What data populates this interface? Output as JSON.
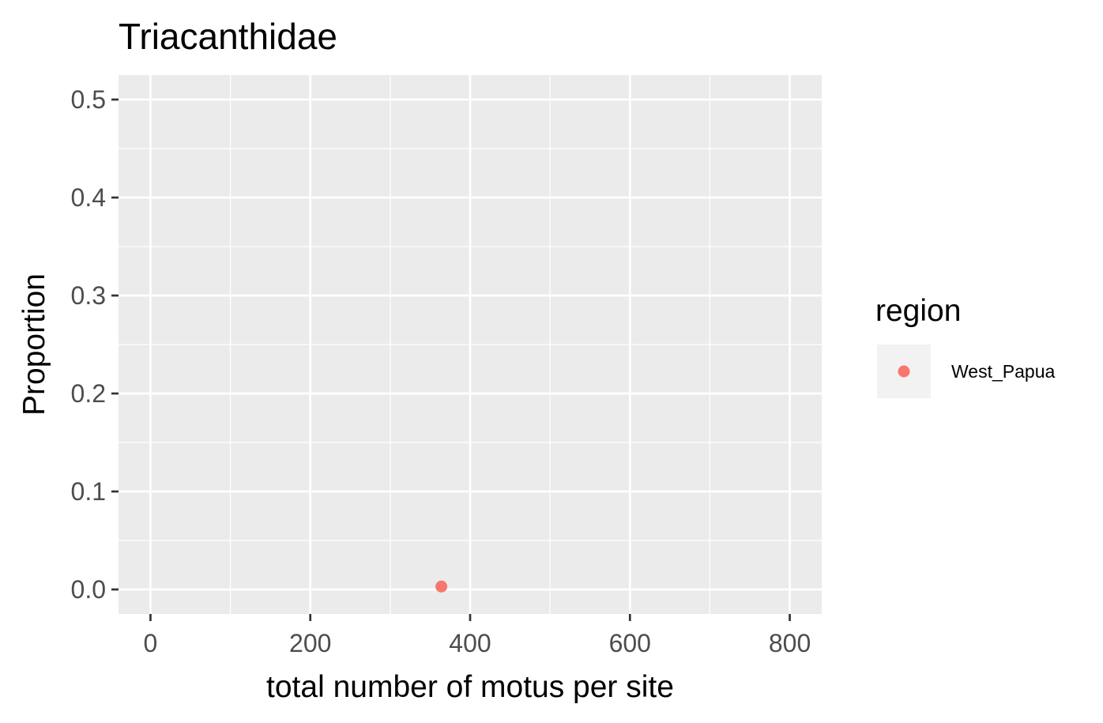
{
  "chart_data": {
    "type": "scatter",
    "title": "Triacanthidae",
    "xlabel": "total number of motus per site",
    "ylabel": "Proportion",
    "xlim": [
      -40,
      840
    ],
    "ylim": [
      -0.025,
      0.525
    ],
    "x_ticks": [
      0,
      200,
      400,
      600,
      800
    ],
    "x_tick_labels": [
      "0",
      "200",
      "400",
      "600",
      "800"
    ],
    "x_minor_ticks": [
      100,
      300,
      500,
      700
    ],
    "y_ticks": [
      0.0,
      0.1,
      0.2,
      0.3,
      0.4,
      0.5
    ],
    "y_tick_labels": [
      "0.0",
      "0.1",
      "0.2",
      "0.3",
      "0.4",
      "0.5"
    ],
    "y_minor_ticks": [
      0.05,
      0.15,
      0.25,
      0.35,
      0.45
    ],
    "grid": true,
    "legend": {
      "title": "region",
      "position": "right",
      "entries": [
        {
          "label": "West_Papua",
          "color": "#F8766D"
        }
      ]
    },
    "series": [
      {
        "name": "West_Papua",
        "color": "#F8766D",
        "points": [
          {
            "x": 364,
            "y": 0.003
          }
        ]
      }
    ],
    "panel_background": "#EBEBEB",
    "grid_color": "#FFFFFF"
  }
}
